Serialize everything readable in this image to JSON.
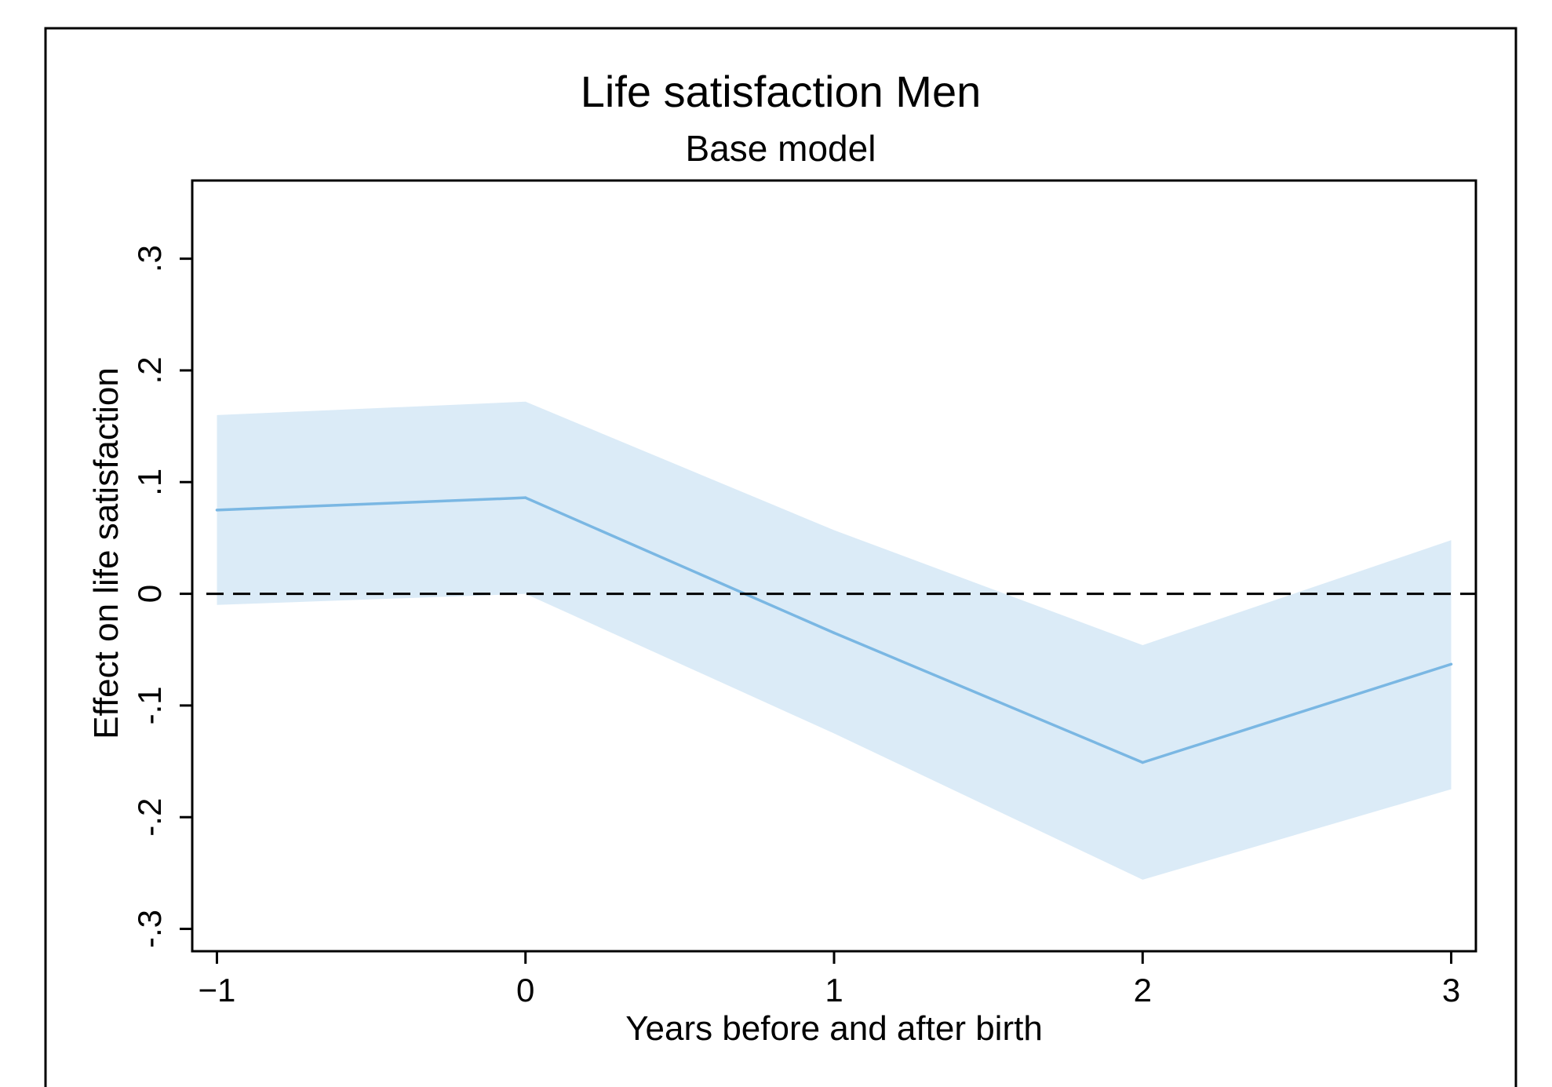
{
  "chart_data": {
    "type": "line",
    "title": "Life satisfaction Men",
    "subtitle": "Base model",
    "xlabel": "Years before and after birth",
    "ylabel": "Effect on life satisfaction",
    "x": [
      -1,
      0,
      1,
      2,
      3
    ],
    "x_tick_labels": [
      "−1",
      "0",
      "1",
      "2",
      "3"
    ],
    "y_ticks": [
      -0.3,
      -0.2,
      -0.1,
      0,
      0.1,
      0.2,
      0.3
    ],
    "y_tick_labels": [
      "-.3",
      "-.2",
      "-.1",
      "0",
      ".1",
      ".2",
      ".3"
    ],
    "xlim": [
      -1.08,
      3.08
    ],
    "ylim": [
      -0.32,
      0.37
    ],
    "grid": false,
    "series": [
      {
        "values": [
          0.075,
          0.086,
          -0.035,
          -0.151,
          -0.063
        ],
        "ci_lower": [
          -0.01,
          0.0,
          -0.125,
          -0.256,
          -0.175
        ],
        "ci_upper": [
          0.16,
          0.172,
          0.057,
          -0.046,
          0.048
        ]
      }
    ],
    "reference_line": {
      "y": 0,
      "style": "dashed"
    },
    "colors": {
      "line": "#7ab7e3",
      "band": "#dbebf7",
      "reference": "#000000"
    }
  }
}
